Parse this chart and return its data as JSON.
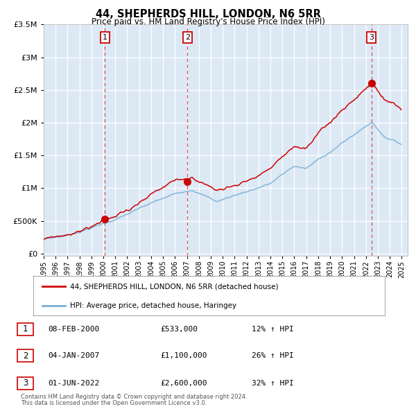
{
  "title": "44, SHEPHERDS HILL, LONDON, N6 5RR",
  "subtitle": "Price paid vs. HM Land Registry's House Price Index (HPI)",
  "legend_red": "44, SHEPHERDS HILL, LONDON, N6 5RR (detached house)",
  "legend_blue": "HPI: Average price, detached house, Haringey",
  "sale1_date": "08-FEB-2000",
  "sale1_price": 533000,
  "sale1_label": "1",
  "sale1_hpi": "12% ↑ HPI",
  "sale1_year": 2000.1,
  "sale2_date": "04-JAN-2007",
  "sale2_price": 1100000,
  "sale2_label": "2",
  "sale2_hpi": "26% ↑ HPI",
  "sale2_year": 2007.03,
  "sale3_date": "01-JUN-2022",
  "sale3_price": 2600000,
  "sale3_label": "3",
  "sale3_hpi": "32% ↑ HPI",
  "sale3_year": 2022.42,
  "footnote1": "Contains HM Land Registry data © Crown copyright and database right 2024.",
  "footnote2": "This data is licensed under the Open Government Licence v3.0.",
  "ylim_max": 3500000,
  "chart_bg": "#dce9f5",
  "red_color": "#cc0000",
  "blue_color": "#7aafd4",
  "grid_color": "#ffffff"
}
